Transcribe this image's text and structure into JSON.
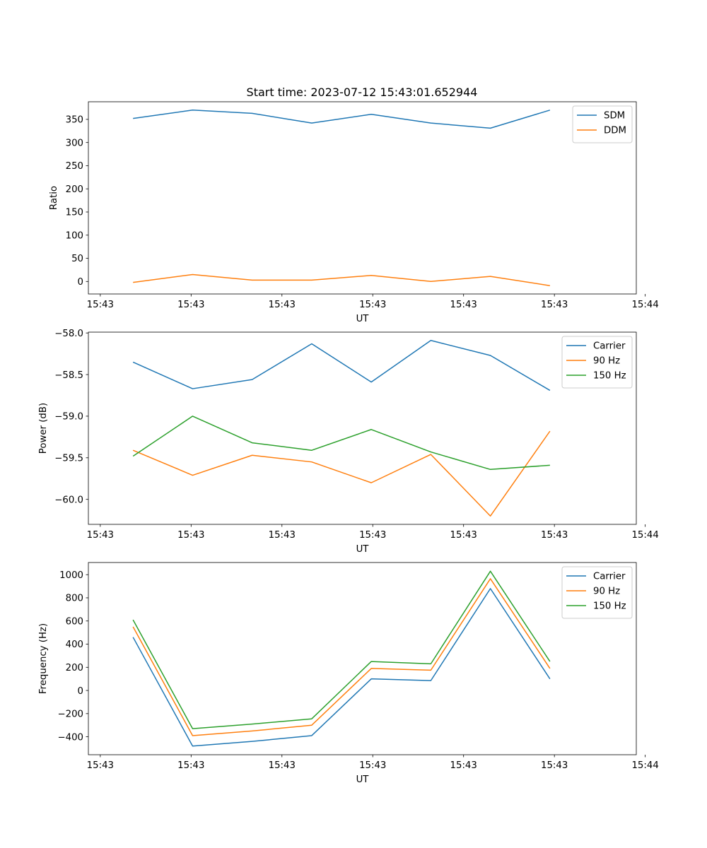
{
  "figure_title": "Start time: 2023-07-12 15:43:01.652944",
  "chart_data": [
    {
      "type": "line",
      "title": "Start time: 2023-07-12 15:43:01.652944",
      "xlabel": "UT",
      "ylabel": "Ratio",
      "x_tick_labels": [
        "15:43",
        "15:43",
        "15:43",
        "15:43",
        "15:43",
        "15:43",
        "15:44"
      ],
      "x_index_range": [
        -0.75,
        8.45
      ],
      "x_tick_positions": [
        -0.55,
        0.975,
        2.5,
        4.025,
        5.55,
        7.075,
        8.6
      ],
      "x": [
        0,
        1,
        2,
        3,
        4,
        5,
        6,
        7
      ],
      "ylim": [
        -27,
        388
      ],
      "y_ticks": [
        0,
        50,
        100,
        150,
        200,
        250,
        300,
        350
      ],
      "legend_position": "top-right",
      "grid": false,
      "series": [
        {
          "name": "SDM",
          "color": "#1f77b4",
          "values": [
            352,
            370,
            363,
            342,
            361,
            342,
            331,
            370
          ]
        },
        {
          "name": "DDM",
          "color": "#ff7f0e",
          "values": [
            -2,
            15,
            3,
            3,
            13,
            0,
            11,
            -9
          ]
        }
      ]
    },
    {
      "type": "line",
      "xlabel": "UT",
      "ylabel": "Power (dB)",
      "x_tick_labels": [
        "15:43",
        "15:43",
        "15:43",
        "15:43",
        "15:43",
        "15:43",
        "15:44"
      ],
      "x_index_range": [
        -0.75,
        8.45
      ],
      "x_tick_positions": [
        -0.55,
        0.975,
        2.5,
        4.025,
        5.55,
        7.075,
        8.6
      ],
      "x": [
        0,
        1,
        2,
        3,
        4,
        5,
        6,
        7
      ],
      "ylim": [
        -60.3,
        -57.99
      ],
      "y_ticks": [
        -60.0,
        -59.5,
        -59.0,
        -58.5,
        -58.0
      ],
      "y_tick_labels": [
        "−60.0",
        "−59.5",
        "−59.0",
        "−58.5",
        "−58.0"
      ],
      "legend_position": "top-right",
      "grid": false,
      "series": [
        {
          "name": "Carrier",
          "color": "#1f77b4",
          "values": [
            -58.35,
            -58.67,
            -58.56,
            -58.13,
            -58.59,
            -58.09,
            -58.27,
            -58.69
          ]
        },
        {
          "name": "90 Hz",
          "color": "#ff7f0e",
          "values": [
            -59.41,
            -59.71,
            -59.47,
            -59.55,
            -59.8,
            -59.46,
            -60.2,
            -59.18
          ]
        },
        {
          "name": "150 Hz",
          "color": "#2ca02c",
          "values": [
            -59.48,
            -59.0,
            -59.32,
            -59.41,
            -59.16,
            -59.43,
            -59.64,
            -59.59
          ]
        }
      ]
    },
    {
      "type": "line",
      "xlabel": "UT",
      "ylabel": "Frequency (Hz)",
      "x_tick_labels": [
        "15:43",
        "15:43",
        "15:43",
        "15:43",
        "15:43",
        "15:43",
        "15:44"
      ],
      "x_index_range": [
        -0.75,
        8.45
      ],
      "x_tick_positions": [
        -0.55,
        0.975,
        2.5,
        4.025,
        5.55,
        7.075,
        8.6
      ],
      "x": [
        0,
        1,
        2,
        3,
        4,
        5,
        6,
        7
      ],
      "ylim": [
        -555,
        1105
      ],
      "y_ticks": [
        -400,
        -200,
        0,
        200,
        400,
        600,
        800,
        1000
      ],
      "y_tick_labels": [
        "−400",
        "−200",
        "0",
        "200",
        "400",
        "600",
        "800",
        "1000"
      ],
      "legend_position": "top-right",
      "grid": false,
      "series": [
        {
          "name": "Carrier",
          "color": "#1f77b4",
          "values": [
            460,
            -480,
            -440,
            -390,
            100,
            85,
            880,
            100
          ]
        },
        {
          "name": "90 Hz",
          "color": "#ff7f0e",
          "values": [
            550,
            -390,
            -350,
            -300,
            190,
            175,
            965,
            190
          ]
        },
        {
          "name": "150 Hz",
          "color": "#2ca02c",
          "values": [
            610,
            -330,
            -290,
            -245,
            250,
            230,
            1030,
            250
          ]
        }
      ]
    }
  ]
}
